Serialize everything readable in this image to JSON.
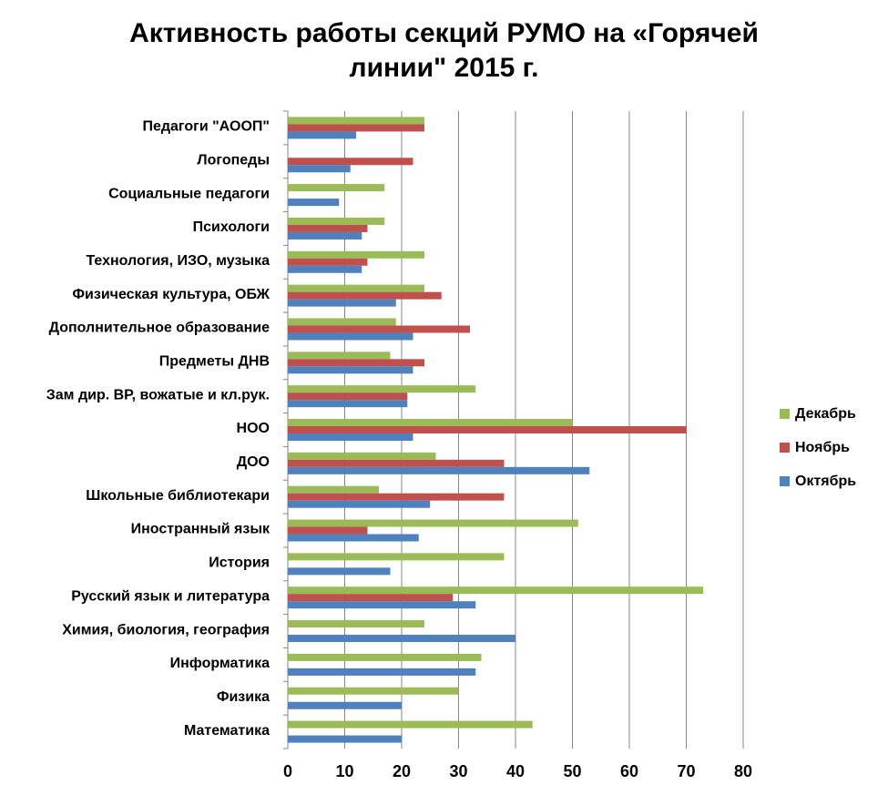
{
  "chart_data": {
    "type": "bar",
    "orientation": "horizontal",
    "title_lines": [
      "Активность работы секций РУМО на «Горячей",
      "линии\"  2015 г."
    ],
    "categories": [
      "Педагоги \"АООП\"",
      "Логопеды",
      "Социальные педагоги",
      "Психологи",
      "Технология, ИЗО, музыка",
      "Физическая культура, ОБЖ",
      "Дополнительное образование",
      "Предметы ДНВ",
      "Зам дир. ВР, вожатые и кл.рук.",
      "НОО",
      "ДОО",
      "Школьные библиотекари",
      "Иностранный язык",
      "История",
      "Русский язык и литература",
      "Химия, биология, география",
      "Информатика",
      "Физика",
      "Математика"
    ],
    "series": [
      {
        "name": "Декабрь",
        "color": "#9BBB59",
        "values": [
          24,
          0,
          17,
          17,
          24,
          24,
          19,
          18,
          33,
          50,
          26,
          16,
          51,
          38,
          73,
          24,
          34,
          30,
          43
        ]
      },
      {
        "name": "Ноябрь",
        "color": "#C0504D",
        "values": [
          24,
          22,
          0,
          14,
          14,
          27,
          32,
          24,
          21,
          70,
          38,
          38,
          14,
          0,
          29,
          0,
          0,
          0,
          0
        ]
      },
      {
        "name": "Октябрь",
        "color": "#4F81BD",
        "values": [
          12,
          11,
          9,
          13,
          13,
          19,
          22,
          22,
          21,
          22,
          53,
          25,
          23,
          18,
          33,
          40,
          33,
          20,
          20
        ]
      }
    ],
    "xlim": [
      0,
      80
    ],
    "xticks": [
      "0",
      "10",
      "20",
      "30",
      "40",
      "50",
      "60",
      "70",
      "80"
    ],
    "grid": true,
    "legend_position": "right",
    "legend": [
      "Декабрь",
      "Ноябрь",
      "Октябрь"
    ]
  }
}
